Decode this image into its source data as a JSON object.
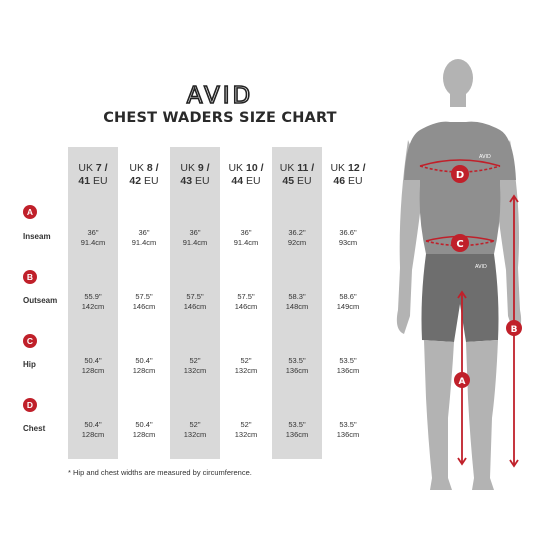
{
  "brand": {
    "logo_text": "AVID"
  },
  "title": "CHEST WADERS SIZE CHART",
  "sizes": [
    {
      "uk_prefix": "UK ",
      "uk_num": "7",
      "sep": " /",
      "eu_num": "41",
      "eu_suffix": " EU",
      "shaded": true
    },
    {
      "uk_prefix": "UK ",
      "uk_num": "8",
      "sep": " /",
      "eu_num": "42",
      "eu_suffix": " EU",
      "shaded": false
    },
    {
      "uk_prefix": "UK ",
      "uk_num": "9",
      "sep": " /",
      "eu_num": "43",
      "eu_suffix": " EU",
      "shaded": true
    },
    {
      "uk_prefix": "UK ",
      "uk_num": "10",
      "sep": " /",
      "eu_num": "44",
      "eu_suffix": " EU",
      "shaded": false
    },
    {
      "uk_prefix": "UK ",
      "uk_num": "11",
      "sep": " /",
      "eu_num": "45",
      "eu_suffix": " EU",
      "shaded": true
    },
    {
      "uk_prefix": "UK ",
      "uk_num": "12",
      "sep": " /",
      "eu_num": "46",
      "eu_suffix": " EU",
      "shaded": false
    }
  ],
  "rows": [
    {
      "badge": "A",
      "name": "Inseam",
      "values": [
        [
          "36\"",
          "91.4cm"
        ],
        [
          "36\"",
          "91.4cm"
        ],
        [
          "36\"",
          "91.4cm"
        ],
        [
          "36\"",
          "91.4cm"
        ],
        [
          "36.2\"",
          "92cm"
        ],
        [
          "36.6\"",
          "93cm"
        ]
      ]
    },
    {
      "badge": "B",
      "name": "Outseam",
      "values": [
        [
          "55.9\"",
          "142cm"
        ],
        [
          "57.5\"",
          "146cm"
        ],
        [
          "57.5\"",
          "146cm"
        ],
        [
          "57.5\"",
          "146cm"
        ],
        [
          "58.3\"",
          "148cm"
        ],
        [
          "58.6\"",
          "149cm"
        ]
      ]
    },
    {
      "badge": "C",
      "name": "Hip",
      "values": [
        [
          "50.4\"",
          "128cm"
        ],
        [
          "50.4\"",
          "128cm"
        ],
        [
          "52\"",
          "132cm"
        ],
        [
          "52\"",
          "132cm"
        ],
        [
          "53.5\"",
          "136cm"
        ],
        [
          "53.5\"",
          "136cm"
        ]
      ]
    },
    {
      "badge": "D",
      "name": "Chest",
      "values": [
        [
          "50.4\"",
          "128cm"
        ],
        [
          "50.4\"",
          "128cm"
        ],
        [
          "52\"",
          "132cm"
        ],
        [
          "52\"",
          "132cm"
        ],
        [
          "53.5\"",
          "136cm"
        ],
        [
          "53.5\"",
          "136cm"
        ]
      ]
    }
  ],
  "footnote": "* Hip and chest widths are measured by circumference.",
  "figure": {
    "markers": [
      "D",
      "C",
      "A",
      "B"
    ],
    "shirt_logo": "AVID",
    "shorts_logo": "AVID"
  },
  "colors": {
    "accent": "#c0202a",
    "band": "#d9d9d9",
    "body": "#b3b3b3",
    "shirt": "#8f8f8f",
    "shorts": "#6e6e6e"
  }
}
